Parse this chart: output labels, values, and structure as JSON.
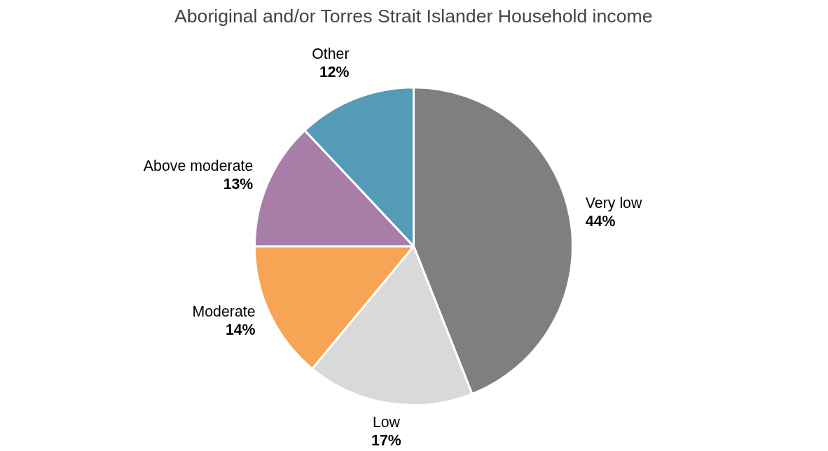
{
  "chart_data": {
    "type": "pie",
    "title": "Aboriginal and/or Torres Strait Islander Household income",
    "categories": [
      "Very low",
      "Low",
      "Moderate",
      "Above moderate",
      "Other"
    ],
    "values": [
      44,
      17,
      14,
      13,
      12
    ],
    "value_labels": [
      "44%",
      "17%",
      "14%",
      "13%",
      "12%"
    ],
    "colors": [
      "#7f7f7f",
      "#d9d9d9",
      "#f7a454",
      "#a87ea9",
      "#559ab6"
    ]
  }
}
